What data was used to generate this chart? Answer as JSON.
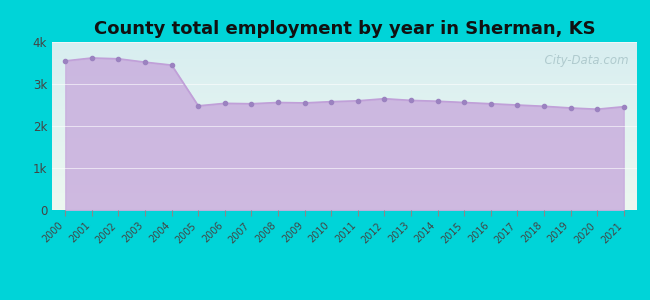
{
  "title": "County total employment by year in Sherman, KS",
  "years": [
    2000,
    2001,
    2002,
    2003,
    2004,
    2005,
    2006,
    2007,
    2008,
    2009,
    2010,
    2011,
    2012,
    2013,
    2014,
    2015,
    2016,
    2017,
    2018,
    2019,
    2020,
    2021
  ],
  "values": [
    3550,
    3620,
    3600,
    3520,
    3450,
    2480,
    2540,
    2530,
    2560,
    2550,
    2580,
    2600,
    2650,
    2610,
    2590,
    2560,
    2530,
    2500,
    2470,
    2430,
    2400,
    2460
  ],
  "line_color": "#c0a0d8",
  "fill_color": "#c9aede",
  "marker_color": "#9b82c0",
  "outer_bg": "#00d4d8",
  "title_fontsize": 13,
  "title_color": "#111111",
  "tick_color": "#444444",
  "watermark": "  City-Data.com",
  "ylim": [
    0,
    4000
  ],
  "yticks": [
    0,
    1000,
    2000,
    3000,
    4000
  ],
  "ytick_labels": [
    "0",
    "1k",
    "2k",
    "3k",
    "4k"
  ]
}
